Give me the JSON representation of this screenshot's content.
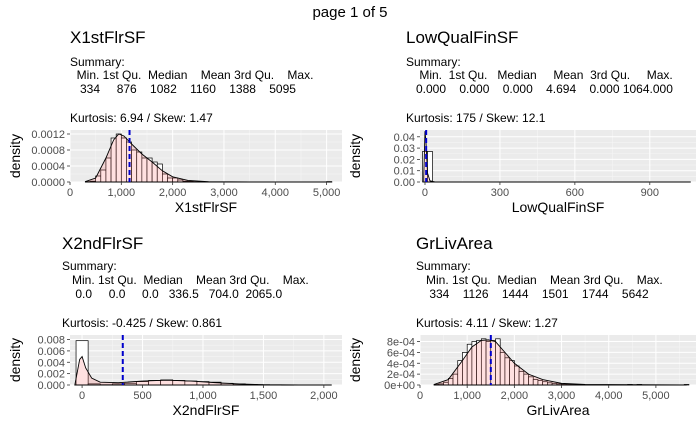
{
  "page": {
    "title": "page 1 of 5"
  },
  "chart_data": [
    {
      "type": "histogram",
      "title": "X1stFlrSF",
      "summary_label": "Summary:",
      "summary_header": "  Min. 1st Qu.  Median    Mean 3rd Qu.    Max. ",
      "summary_values": "   334     876    1082    1160    1388    5095 ",
      "kurtosis_label": "Kurtosis: 6.94  / Skew: 1.47",
      "xlabel": "X1stFlrSF",
      "ylabel": "density",
      "xlim": [
        0,
        5300
      ],
      "ylim": [
        0,
        0.0013
      ],
      "xticks": [
        0,
        1000,
        2000,
        3000,
        4000,
        5000
      ],
      "xtick_labels": [
        "0",
        "1,000",
        "2,000",
        "3,000",
        "4,000",
        "5,000"
      ],
      "yticks": [
        0,
        0.0004,
        0.0008,
        0.0012
      ],
      "ytick_labels": [
        "0.0000",
        "0.0004",
        "0.0008",
        "0.0012"
      ],
      "bins": [
        {
          "x0": 300,
          "x1": 400,
          "density": 1e-05
        },
        {
          "x0": 400,
          "x1": 500,
          "density": 2e-05
        },
        {
          "x0": 500,
          "x1": 600,
          "density": 0.00015
        },
        {
          "x0": 600,
          "x1": 700,
          "density": 0.0003
        },
        {
          "x0": 700,
          "x1": 800,
          "density": 0.0006
        },
        {
          "x0": 800,
          "x1": 900,
          "density": 0.0011
        },
        {
          "x0": 900,
          "x1": 1000,
          "density": 0.0012
        },
        {
          "x0": 1000,
          "x1": 1100,
          "density": 0.0011
        },
        {
          "x0": 1100,
          "x1": 1200,
          "density": 0.001
        },
        {
          "x0": 1200,
          "x1": 1300,
          "density": 0.0008
        },
        {
          "x0": 1300,
          "x1": 1400,
          "density": 0.00075
        },
        {
          "x0": 1400,
          "x1": 1500,
          "density": 0.0006
        },
        {
          "x0": 1500,
          "x1": 1600,
          "density": 0.0006
        },
        {
          "x0": 1600,
          "x1": 1700,
          "density": 0.0005
        },
        {
          "x0": 1700,
          "x1": 1800,
          "density": 0.00045
        },
        {
          "x0": 1800,
          "x1": 1900,
          "density": 0.0002
        },
        {
          "x0": 1900,
          "x1": 2000,
          "density": 0.0001
        },
        {
          "x0": 2000,
          "x1": 2100,
          "density": 0.0001
        },
        {
          "x0": 2100,
          "x1": 2200,
          "density": 5e-05
        },
        {
          "x0": 2200,
          "x1": 2300,
          "density": 2e-05
        },
        {
          "x0": 2300,
          "x1": 2400,
          "density": 2e-05
        },
        {
          "x0": 2400,
          "x1": 2500,
          "density": 1e-05
        },
        {
          "x0": 5000,
          "x1": 5100,
          "density": 1e-05
        }
      ],
      "density_curve": [
        [
          300,
          1e-05
        ],
        [
          500,
          0.0001
        ],
        [
          700,
          0.0006
        ],
        [
          850,
          0.00105
        ],
        [
          950,
          0.0012
        ],
        [
          1050,
          0.00115
        ],
        [
          1200,
          0.00095
        ],
        [
          1400,
          0.0007
        ],
        [
          1600,
          0.0005
        ],
        [
          1800,
          0.00028
        ],
        [
          2000,
          0.00013
        ],
        [
          2300,
          4e-05
        ],
        [
          2700,
          8e-06
        ],
        [
          3500,
          1e-06
        ],
        [
          5100,
          1e-06
        ]
      ],
      "mean_line": 1160
    },
    {
      "type": "histogram",
      "title": "LowQualFinSF",
      "summary_label": "Summary:",
      "summary_header": "    Min.  1st Qu.   Median     Mean  3rd Qu.     Max. ",
      "summary_values": "   0.000    0.000    0.000    4.694    0.000 1064.000 ",
      "kurtosis_label": "Kurtosis: 175  / Skew: 12.1",
      "xlabel": "LowQualFinSF",
      "ylabel": "density",
      "xlim": [
        -20,
        1085
      ],
      "ylim": [
        0,
        0.046
      ],
      "xticks": [
        0,
        300,
        600,
        900
      ],
      "xtick_labels": [
        "0",
        "300",
        "600",
        "900"
      ],
      "yticks": [
        0,
        0.01,
        0.02,
        0.03,
        0.04
      ],
      "ytick_labels": [
        "0.00",
        "0.01",
        "0.02",
        "0.03",
        "0.04"
      ],
      "bins": [
        {
          "x0": -10,
          "x1": 10,
          "density": 0.027
        },
        {
          "x0": 10,
          "x1": 30,
          "density": 0.027
        }
      ],
      "density_curve": [
        [
          -5,
          0.005
        ],
        [
          0,
          0.045
        ],
        [
          4,
          0.035
        ],
        [
          10,
          0.008
        ],
        [
          20,
          0.001
        ],
        [
          40,
          0
        ],
        [
          1064,
          0
        ]
      ],
      "mean_line": 4.694
    },
    {
      "type": "histogram",
      "title": "X2ndFlrSF",
      "summary_label": "Summary:",
      "summary_header": "   Min. 1st Qu.  Median    Mean 3rd Qu.    Max. ",
      "summary_values": "    0.0     0.0     0.0   336.5   704.0  2065.0 ",
      "kurtosis_label": "Kurtosis: -0.425  / Skew: 0.861",
      "xlabel": "X2ndFlrSF",
      "ylabel": "density",
      "xlim": [
        -100,
        2150
      ],
      "ylim": [
        0,
        0.0088
      ],
      "xticks": [
        0,
        500,
        1000,
        1500,
        2000
      ],
      "xtick_labels": [
        "0",
        "500",
        "1,000",
        "1,500",
        "2,000"
      ],
      "yticks": [
        0,
        0.002,
        0.004,
        0.006,
        0.008
      ],
      "ytick_labels": [
        "0.000",
        "0.002",
        "0.004",
        "0.006",
        "0.008"
      ],
      "bins": [
        {
          "x0": -50,
          "x1": 50,
          "density": 0.0078
        },
        {
          "x0": 50,
          "x1": 150,
          "density": 0.0002
        },
        {
          "x0": 150,
          "x1": 250,
          "density": 5e-05
        },
        {
          "x0": 250,
          "x1": 350,
          "density": 0.0002
        },
        {
          "x0": 350,
          "x1": 450,
          "density": 0.0003
        },
        {
          "x0": 450,
          "x1": 550,
          "density": 0.0006
        },
        {
          "x0": 550,
          "x1": 650,
          "density": 0.0008
        },
        {
          "x0": 650,
          "x1": 750,
          "density": 0.0009
        },
        {
          "x0": 750,
          "x1": 850,
          "density": 0.0008
        },
        {
          "x0": 850,
          "x1": 950,
          "density": 0.0007
        },
        {
          "x0": 950,
          "x1": 1050,
          "density": 0.0006
        },
        {
          "x0": 1050,
          "x1": 1150,
          "density": 0.0005
        },
        {
          "x0": 1150,
          "x1": 1250,
          "density": 0.0003
        },
        {
          "x0": 1250,
          "x1": 1350,
          "density": 0.0002
        },
        {
          "x0": 1350,
          "x1": 1450,
          "density": 0.0001
        },
        {
          "x0": 1450,
          "x1": 1550,
          "density": 5e-05
        },
        {
          "x0": 1550,
          "x1": 1650,
          "density": 3e-05
        },
        {
          "x0": 1650,
          "x1": 1750,
          "density": 2e-05
        }
      ],
      "density_curve": [
        [
          -60,
          0.0
        ],
        [
          -20,
          0.0045
        ],
        [
          0,
          0.005
        ],
        [
          30,
          0.003
        ],
        [
          80,
          0.0012
        ],
        [
          150,
          0.0005
        ],
        [
          300,
          0.0004
        ],
        [
          500,
          0.0007
        ],
        [
          700,
          0.00085
        ],
        [
          900,
          0.0007
        ],
        [
          1100,
          0.0004
        ],
        [
          1300,
          0.00018
        ],
        [
          1500,
          5e-05
        ],
        [
          1800,
          1e-05
        ],
        [
          2065,
          0.0
        ]
      ],
      "mean_line": 336.5
    },
    {
      "type": "histogram",
      "title": "GrLivArea",
      "summary_label": "Summary:",
      "summary_header": "   Min. 1st Qu.  Median    Mean 3rd Qu.    Max. ",
      "summary_values": "    334    1126    1444    1501    1744    5642 ",
      "kurtosis_label": "Kurtosis: 4.11  / Skew: 1.27",
      "xlabel": "GrLivArea",
      "ylabel": "density",
      "xlim": [
        0,
        5850
      ],
      "ylim": [
        0,
        0.00092
      ],
      "xticks": [
        0,
        1000,
        2000,
        3000,
        4000,
        5000,
        6000
      ],
      "xtick_labels": [
        "0",
        "1,000",
        "2,000",
        "3,000",
        "4,000",
        "5,000",
        "6,000"
      ],
      "yticks": [
        0,
        0.0002,
        0.0004,
        0.0006,
        0.0008
      ],
      "ytick_labels": [
        "0e+00",
        "2e-04",
        "4e-04",
        "6e-04",
        "8e-04"
      ],
      "bins": [
        {
          "x0": 300,
          "x1": 400,
          "density": 1e-05
        },
        {
          "x0": 400,
          "x1": 500,
          "density": 2e-05
        },
        {
          "x0": 500,
          "x1": 600,
          "density": 5e-05
        },
        {
          "x0": 600,
          "x1": 700,
          "density": 0.00012
        },
        {
          "x0": 700,
          "x1": 800,
          "density": 0.0002
        },
        {
          "x0": 800,
          "x1": 900,
          "density": 0.00045
        },
        {
          "x0": 900,
          "x1": 1000,
          "density": 0.0006
        },
        {
          "x0": 1000,
          "x1": 1100,
          "density": 0.00075
        },
        {
          "x0": 1100,
          "x1": 1200,
          "density": 0.0008
        },
        {
          "x0": 1200,
          "x1": 1300,
          "density": 0.00082
        },
        {
          "x0": 1300,
          "x1": 1400,
          "density": 0.00085
        },
        {
          "x0": 1400,
          "x1": 1500,
          "density": 0.0008
        },
        {
          "x0": 1500,
          "x1": 1600,
          "density": 0.00082
        },
        {
          "x0": 1600,
          "x1": 1700,
          "density": 0.00085
        },
        {
          "x0": 1700,
          "x1": 1800,
          "density": 0.0006
        },
        {
          "x0": 1800,
          "x1": 1900,
          "density": 0.0005
        },
        {
          "x0": 1900,
          "x1": 2000,
          "density": 0.00045
        },
        {
          "x0": 2000,
          "x1": 2100,
          "density": 0.00035
        },
        {
          "x0": 2100,
          "x1": 2200,
          "density": 0.00025
        },
        {
          "x0": 2200,
          "x1": 2300,
          "density": 0.0002
        },
        {
          "x0": 2300,
          "x1": 2400,
          "density": 0.00015
        },
        {
          "x0": 2400,
          "x1": 2500,
          "density": 0.0001
        },
        {
          "x0": 2500,
          "x1": 2600,
          "density": 8e-05
        },
        {
          "x0": 2600,
          "x1": 2700,
          "density": 6e-05
        },
        {
          "x0": 2700,
          "x1": 2800,
          "density": 4e-05
        },
        {
          "x0": 2800,
          "x1": 2900,
          "density": 3e-05
        },
        {
          "x0": 2900,
          "x1": 3000,
          "density": 2e-05
        },
        {
          "x0": 3000,
          "x1": 3100,
          "density": 1e-05
        },
        {
          "x0": 3100,
          "x1": 3200,
          "density": 1e-05
        },
        {
          "x0": 3200,
          "x1": 3300,
          "density": 1e-05
        },
        {
          "x0": 3300,
          "x1": 3400,
          "density": 1e-05
        },
        {
          "x0": 4400,
          "x1": 4500,
          "density": 1e-05
        },
        {
          "x0": 4600,
          "x1": 4700,
          "density": 1e-05
        },
        {
          "x0": 5600,
          "x1": 5700,
          "density": 1e-05
        }
      ],
      "density_curve": [
        [
          300,
          1e-05
        ],
        [
          600,
          0.0001
        ],
        [
          900,
          0.00045
        ],
        [
          1100,
          0.0007
        ],
        [
          1300,
          0.00082
        ],
        [
          1450,
          0.00083
        ],
        [
          1600,
          0.0008
        ],
        [
          1800,
          0.0006
        ],
        [
          2000,
          0.0004
        ],
        [
          2300,
          0.0002
        ],
        [
          2600,
          0.0001
        ],
        [
          3000,
          3e-05
        ],
        [
          3500,
          1e-05
        ],
        [
          4500,
          5e-06
        ],
        [
          5642,
          2e-06
        ]
      ],
      "mean_line": 1501
    }
  ]
}
